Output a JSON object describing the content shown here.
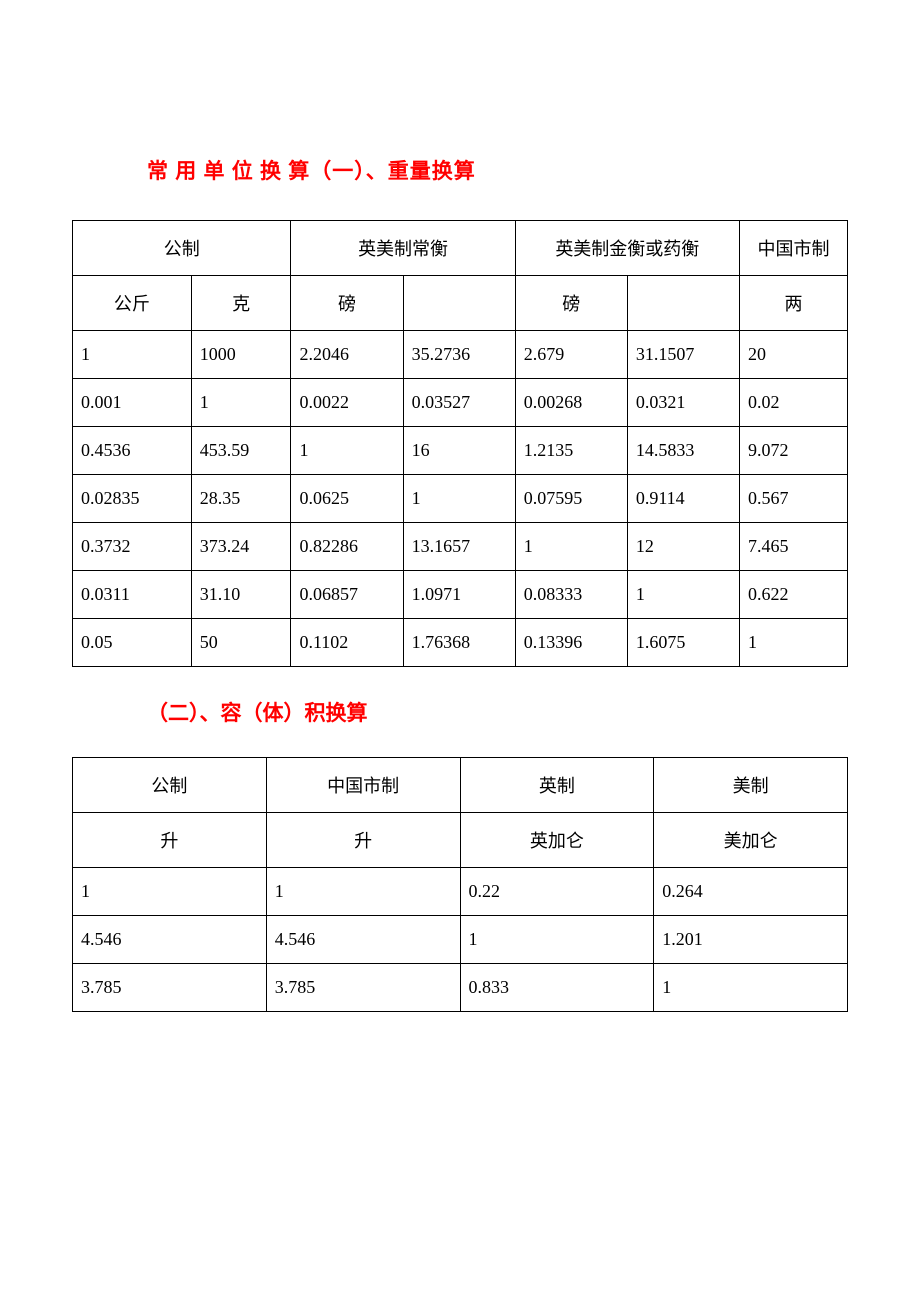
{
  "title": "常 用 单 位 换 算（一）、重量换算",
  "table1": {
    "headers": [
      "公制",
      "英美制常衡",
      "英美制金衡或药衡",
      "中国市制"
    ],
    "subheaders": [
      "公斤",
      "克",
      "磅",
      "",
      "磅",
      "",
      "两"
    ],
    "rows": [
      [
        "1",
        "1000",
        "2.2046",
        "35.2736",
        "2.679",
        "31.1507",
        "20"
      ],
      [
        "0.001",
        "1",
        "0.0022",
        "0.03527",
        "0.00268",
        "0.0321",
        "0.02"
      ],
      [
        "0.4536",
        "453.59",
        "1",
        "16",
        "1.2135",
        "14.5833",
        "9.072"
      ],
      [
        "0.02835",
        "28.35",
        "0.0625",
        "1",
        "0.07595",
        "0.9114",
        "0.567"
      ],
      [
        "0.3732",
        "373.24",
        "0.82286",
        "13.1657",
        "1",
        "12",
        "7.465"
      ],
      [
        "0.0311",
        "31.10",
        "0.06857",
        "1.0971",
        "0.08333",
        "1",
        "0.622"
      ],
      [
        "0.05",
        "50",
        "0.1102",
        "1.76368",
        "0.13396",
        "1.6075",
        "1"
      ]
    ]
  },
  "subtitle": "（二）、容（体）积换算",
  "table2": {
    "headers": [
      "公制",
      "中国市制",
      "英制",
      "美制"
    ],
    "subheaders": [
      "升",
      "升",
      "英加仑",
      "美加仑"
    ],
    "rows": [
      [
        "1",
        "1",
        "0.22",
        "0.264"
      ],
      [
        "4.546",
        "4.546",
        "1",
        "1.201"
      ],
      [
        "3.785",
        "3.785",
        "0.833",
        "1"
      ]
    ]
  },
  "styling": {
    "title_color": "#ff0000",
    "title_fontsize": 21,
    "body_fontsize": 18,
    "border_color": "#000000",
    "background_color": "#ffffff",
    "text_color": "#000000",
    "font_family": "SimSun"
  }
}
